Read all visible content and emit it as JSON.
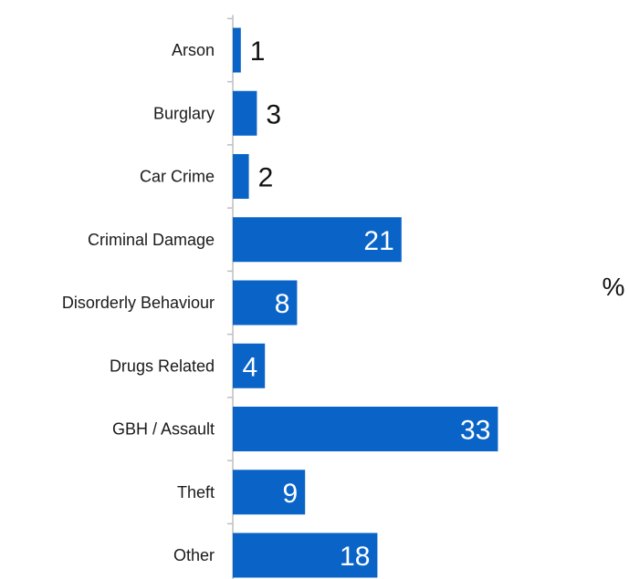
{
  "chart_data": {
    "type": "bar",
    "orientation": "horizontal",
    "categories": [
      "Arson",
      "Burglary",
      "Car Crime",
      "Criminal Damage",
      "Disorderly Behaviour",
      "Drugs Related",
      "GBH / Assault",
      "Theft",
      "Other"
    ],
    "values": [
      1,
      3,
      2,
      21,
      8,
      4,
      33,
      9,
      18
    ],
    "unit": "%",
    "title": "",
    "xlabel": "",
    "ylabel": "",
    "grid": false,
    "legend": "none",
    "bar_color": "#0a64c8",
    "inside_label_color": "#ffffff",
    "outside_label_color": "#111111"
  }
}
